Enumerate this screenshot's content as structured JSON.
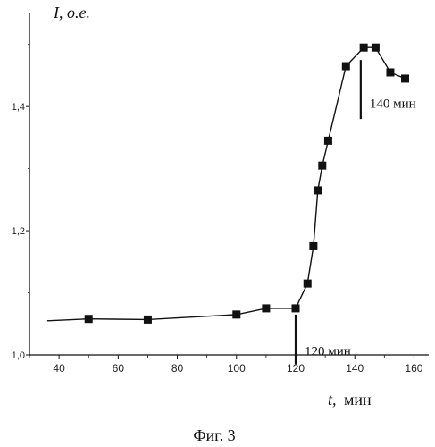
{
  "chart_data": {
    "type": "line",
    "title": "",
    "xlabel_var": "t,",
    "xlabel_unit": "мин",
    "ylabel": "I, о.е.",
    "xlim": [
      30,
      165
    ],
    "ylim": [
      1.0,
      1.55
    ],
    "xticks": [
      40,
      60,
      80,
      100,
      120,
      140,
      160
    ],
    "xtick_labels": [
      "40",
      "60",
      "80",
      "100",
      "120",
      "140",
      "160"
    ],
    "yticks": [
      1.0,
      1.2,
      1.4
    ],
    "ytick_labels": [
      "1,0",
      "1,2",
      "1,4"
    ],
    "grid": false,
    "curve": [
      {
        "x": 36,
        "y": 1.055
      },
      {
        "x": 50,
        "y": 1.058
      },
      {
        "x": 70,
        "y": 1.057
      },
      {
        "x": 100,
        "y": 1.065
      },
      {
        "x": 110,
        "y": 1.075
      },
      {
        "x": 120,
        "y": 1.075
      },
      {
        "x": 124,
        "y": 1.115
      },
      {
        "x": 126,
        "y": 1.175
      },
      {
        "x": 127.5,
        "y": 1.265
      },
      {
        "x": 129,
        "y": 1.305
      },
      {
        "x": 131,
        "y": 1.345
      },
      {
        "x": 137,
        "y": 1.465
      },
      {
        "x": 143,
        "y": 1.495
      },
      {
        "x": 147,
        "y": 1.495
      },
      {
        "x": 152,
        "y": 1.455
      },
      {
        "x": 157,
        "y": 1.445
      }
    ],
    "markers": [
      {
        "x": 50,
        "y": 1.058
      },
      {
        "x": 70,
        "y": 1.057
      },
      {
        "x": 100,
        "y": 1.065
      },
      {
        "x": 110,
        "y": 1.075
      },
      {
        "x": 120,
        "y": 1.075
      },
      {
        "x": 124,
        "y": 1.115
      },
      {
        "x": 126,
        "y": 1.175
      },
      {
        "x": 127.5,
        "y": 1.265
      },
      {
        "x": 129,
        "y": 1.305
      },
      {
        "x": 131,
        "y": 1.345
      },
      {
        "x": 137,
        "y": 1.465
      },
      {
        "x": 143,
        "y": 1.495
      },
      {
        "x": 147,
        "y": 1.495
      },
      {
        "x": 152,
        "y": 1.455
      },
      {
        "x": 157,
        "y": 1.445
      }
    ],
    "annotations": [
      {
        "label": "120 мин",
        "x": 120,
        "y_from": 1.065,
        "y_to": 0.985
      },
      {
        "label": "140 мин",
        "x": 142,
        "y_from": 1.475,
        "y_to": 1.38
      }
    ]
  },
  "caption": "Фиг. 3"
}
